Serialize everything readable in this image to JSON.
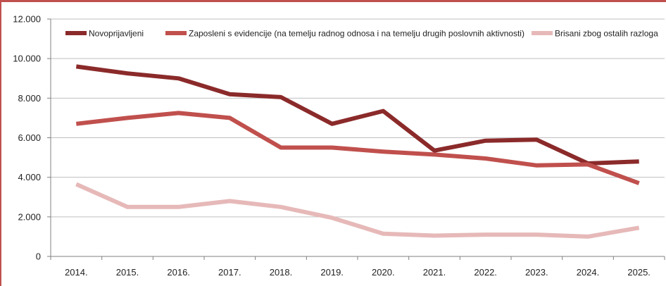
{
  "chart_data": {
    "type": "line",
    "title": "",
    "xlabel": "",
    "ylabel": "",
    "ylim": [
      0,
      12000
    ],
    "yticks": [
      0,
      2000,
      4000,
      6000,
      8000,
      10000,
      12000
    ],
    "ytick_labels": [
      "0",
      "2.000",
      "4.000",
      "6.000",
      "8.000",
      "10.000",
      "12.000"
    ],
    "categories": [
      "2014.",
      "2015.",
      "2016.",
      "2017.",
      "2018.",
      "2019.",
      "2020.",
      "2021.",
      "2022.",
      "2023.",
      "2024.",
      "2025."
    ],
    "grid": true,
    "legend_position": "top",
    "series": [
      {
        "name": "Novoprijavljeni",
        "color": "#8b2a2a",
        "values": [
          9600,
          9250,
          9000,
          8200,
          8050,
          6700,
          7350,
          5350,
          5850,
          5900,
          4700,
          4800
        ]
      },
      {
        "name": "Zaposleni s evidencije (na temelju radnog odnosa i na temelju drugih poslovnih aktivnosti)",
        "color": "#c0504d",
        "values": [
          6700,
          7000,
          7250,
          7000,
          5500,
          5500,
          5300,
          5150,
          4950,
          4600,
          4650,
          3700
        ]
      },
      {
        "name": "Brisani zbog ostalih razloga",
        "color": "#e6b9b8",
        "values": [
          3650,
          2500,
          2500,
          2800,
          2500,
          1950,
          1150,
          1050,
          1100,
          1100,
          1000,
          1450
        ]
      }
    ]
  }
}
